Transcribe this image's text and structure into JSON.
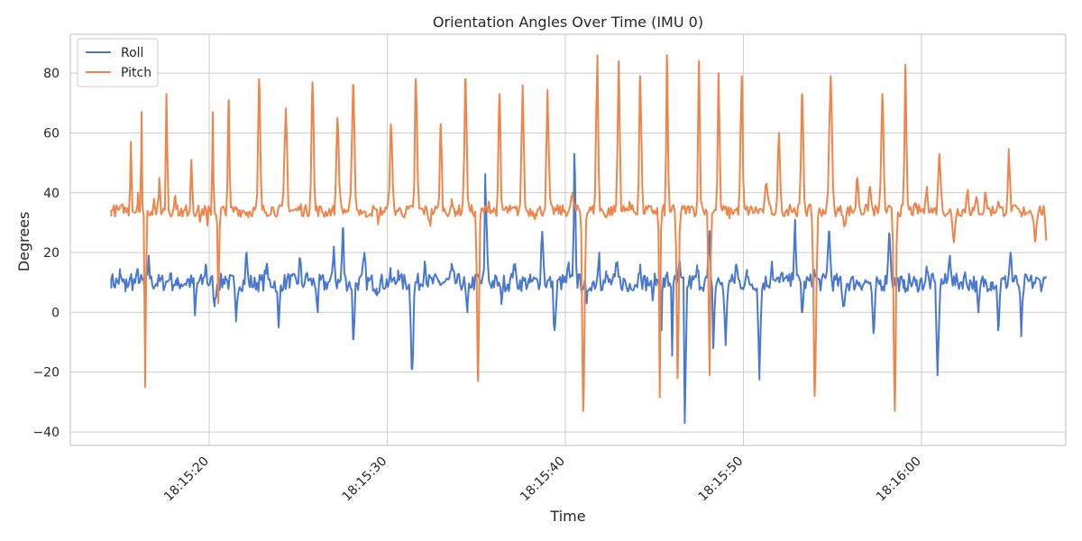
{
  "chart_data": {
    "type": "line",
    "title": "Orientation Angles Over Time (IMU 0)",
    "xlabel": "Time",
    "ylabel": "Degrees",
    "x_range": [
      "18:15:14.5",
      "18:16:07"
    ],
    "xlim": [
      "18:15:12.2",
      "18:16:08.1"
    ],
    "x_ticks": [
      "18:15:20",
      "18:15:30",
      "18:15:40",
      "18:15:50",
      "18:16:00"
    ],
    "ylim": [
      -44.5,
      93
    ],
    "y_ticks": [
      -40,
      -20,
      0,
      20,
      40,
      60,
      80
    ],
    "grid": true,
    "legend_position": "top-left",
    "colors": {
      "Roll": "#4878d0",
      "Pitch": "#ee854a",
      "grid": "#cccccc",
      "spine": "#cccccc"
    },
    "series": [
      {
        "name": "Roll",
        "baseline": 10,
        "x": [
          "18:15:14.5",
          "18:15:15.0",
          "18:15:15.3",
          "18:15:15.6",
          "18:15:16.0",
          "18:15:16.4",
          "18:15:16.6",
          "18:15:17.1",
          "18:15:17.8",
          "18:15:18.2",
          "18:15:18.8",
          "18:15:19.2",
          "18:15:19.8",
          "18:15:20.3",
          "18:15:20.9",
          "18:15:21.5",
          "18:15:22.1",
          "18:15:22.5",
          "18:15:23.2",
          "18:15:23.9",
          "18:15:24.5",
          "18:15:25.1",
          "18:15:25.5",
          "18:15:26.1",
          "18:15:26.5",
          "18:15:27.0",
          "18:15:27.5",
          "18:15:28.1",
          "18:15:28.7",
          "18:15:29.4",
          "18:15:30.2",
          "18:15:30.6",
          "18:15:31.4",
          "18:15:32.1",
          "18:15:32.9",
          "18:15:33.6",
          "18:15:34.5",
          "18:15:35.1",
          "18:15:35.5",
          "18:15:36.4",
          "18:15:37.1",
          "18:15:38.0",
          "18:15:38.7",
          "18:15:39.4",
          "18:15:40.2",
          "18:15:40.5",
          "18:15:41.2",
          "18:15:41.9",
          "18:15:42.3",
          "18:15:42.9",
          "18:15:43.5",
          "18:15:44.2",
          "18:15:44.9",
          "18:15:45.1",
          "18:15:45.4",
          "18:15:45.7",
          "18:15:46.0",
          "18:15:46.4",
          "18:15:46.7",
          "18:15:47.4",
          "18:15:48.1",
          "18:15:48.3",
          "18:15:49.0",
          "18:15:49.6",
          "18:15:50.2",
          "18:15:50.9",
          "18:15:51.6",
          "18:15:52.2",
          "18:15:52.9",
          "18:15:53.3",
          "18:15:54.0",
          "18:15:54.8",
          "18:15:55.6",
          "18:15:56.5",
          "18:15:57.3",
          "18:15:58.2",
          "18:15:59.0",
          "18:15:59.7",
          "18:16:00.3",
          "18:16:00.9",
          "18:16:01.6",
          "18:16:02.4",
          "18:16:03.2",
          "18:16:03.9",
          "18:16:04.3",
          "18:16:05.0",
          "18:16:05.6",
          "18:16:06.3",
          "18:16:07.0"
        ],
        "values": [
          11,
          13,
          7,
          12,
          14,
          4,
          19,
          10,
          13,
          9,
          11,
          -1,
          16,
          2,
          12,
          -3,
          20,
          9,
          15,
          -5,
          11,
          18,
          13,
          0,
          9,
          22,
          28,
          -9,
          19,
          8,
          12,
          14,
          -19,
          17,
          10,
          14,
          0,
          12,
          44,
          5,
          16,
          10,
          27,
          -6,
          15,
          53,
          3,
          20,
          12,
          16,
          7,
          16,
          4,
          11,
          -6,
          12,
          -13,
          17,
          -37,
          14,
          25,
          -12,
          -11,
          16,
          12,
          -20,
          17,
          13,
          31,
          0,
          13,
          27,
          2,
          10,
          -7,
          26,
          8,
          9,
          14,
          -21,
          19,
          12,
          0,
          10,
          -6,
          20,
          -8,
          10,
          12
        ]
      },
      {
        "name": "Pitch",
        "baseline": 34,
        "x": [
          "18:15:14.5",
          "18:15:15.2",
          "18:15:15.6",
          "18:15:16.0",
          "18:15:16.2",
          "18:15:16.4",
          "18:15:16.9",
          "18:15:17.2",
          "18:15:17.6",
          "18:15:18.1",
          "18:15:18.5",
          "18:15:19.0",
          "18:15:19.5",
          "18:15:19.9",
          "18:15:20.2",
          "18:15:20.5",
          "18:15:21.1",
          "18:15:21.5",
          "18:15:22.2",
          "18:15:22.8",
          "18:15:23.5",
          "18:15:24.3",
          "18:15:25.1",
          "18:15:25.8",
          "18:15:26.5",
          "18:15:27.2",
          "18:15:28.1",
          "18:15:28.8",
          "18:15:29.5",
          "18:15:30.2",
          "18:15:31.0",
          "18:15:31.6",
          "18:15:32.4",
          "18:15:33.0",
          "18:15:33.6",
          "18:15:34.4",
          "18:15:35.1",
          "18:15:35.7",
          "18:15:36.3",
          "18:15:36.9",
          "18:15:37.6",
          "18:15:38.3",
          "18:15:39.0",
          "18:15:39.7",
          "18:15:40.4",
          "18:15:41.0",
          "18:15:41.8",
          "18:15:42.3",
          "18:15:43.0",
          "18:15:43.6",
          "18:15:44.2",
          "18:15:44.9",
          "18:15:45.3",
          "18:15:45.7",
          "18:15:46.3",
          "18:15:47.0",
          "18:15:47.5",
          "18:15:48.1",
          "18:15:48.6",
          "18:15:49.2",
          "18:15:49.9",
          "18:15:50.5",
          "18:15:51.3",
          "18:15:52.0",
          "18:15:52.6",
          "18:15:53.3",
          "18:15:54.0",
          "18:15:54.9",
          "18:15:55.7",
          "18:15:56.4",
          "18:15:57.1",
          "18:15:57.8",
          "18:15:58.5",
          "18:15:59.1",
          "18:15:59.7",
          "18:16:00.3",
          "18:16:01.0",
          "18:16:01.8",
          "18:16:02.6",
          "18:16:03.1",
          "18:16:03.6",
          "18:16:04.3",
          "18:16:04.9",
          "18:16:05.6",
          "18:16:06.4",
          "18:16:07.0"
        ],
        "values": [
          34,
          35,
          57,
          40,
          67,
          -25,
          38,
          45,
          73,
          39,
          32,
          51,
          31,
          29,
          67,
          3,
          71,
          35,
          33,
          78,
          35,
          68,
          35,
          77,
          33,
          65,
          76,
          32,
          31,
          63,
          33,
          78,
          30,
          63,
          36,
          78,
          -23,
          37,
          73,
          34,
          76,
          33,
          73,
          34,
          40,
          -33,
          86,
          32,
          84,
          37,
          79,
          34,
          -28,
          86,
          -22,
          35,
          84,
          -21,
          80,
          33,
          79,
          34,
          43,
          60,
          36,
          73,
          -28,
          79,
          30,
          45,
          42,
          73,
          -33,
          82,
          35,
          42,
          53,
          24,
          41,
          38,
          40,
          37,
          53,
          32,
          24,
          24
        ]
      }
    ]
  }
}
